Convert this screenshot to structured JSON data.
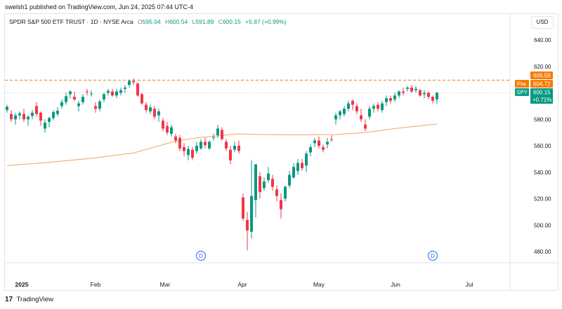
{
  "header": {
    "attribution": "swelsh1 published on TradingView.com, Jun 24, 2025 07:44 UTC-4"
  },
  "legend": {
    "symbol_text": "SPDR S&P 500 ETF TRUST · 1D · NYSE Arca",
    "open_label": "O",
    "open_value": "595.04",
    "high_label": "H",
    "high_value": "600.54",
    "low_label": "L",
    "low_value": "591.89",
    "close_label": "C",
    "close_value": "600.15",
    "change_value": "+5.87 (+0.99%)"
  },
  "currency": "USD",
  "footer": {
    "brand": "TradingView",
    "logo_text": "17"
  },
  "colors": {
    "up": "#089981",
    "down": "#f23645",
    "ma": "#f7a35c",
    "premarket": "#f57c00"
  },
  "chart_data": {
    "type": "candlestick",
    "symbol": "SPY",
    "timeframe": "1D",
    "ylim": [
      470,
      650
    ],
    "y_ticks": [
      480,
      500,
      520,
      540,
      560,
      580,
      600,
      620,
      640
    ],
    "x_labels": [
      "2025",
      "Feb",
      "Mar",
      "Apr",
      "May",
      "Jun",
      "Jul"
    ],
    "candles": [
      {
        "o": 587.0,
        "h": 591.0,
        "l": 585.0,
        "c": 589.5
      },
      {
        "o": 584.0,
        "h": 587.0,
        "l": 578.0,
        "c": 580.0
      },
      {
        "o": 580.0,
        "h": 585.0,
        "l": 576.0,
        "c": 583.0
      },
      {
        "o": 583.0,
        "h": 586.0,
        "l": 580.0,
        "c": 584.5
      },
      {
        "o": 584.0,
        "h": 588.0,
        "l": 578.0,
        "c": 580.0
      },
      {
        "o": 580.0,
        "h": 583.0,
        "l": 575.0,
        "c": 582.0
      },
      {
        "o": 582.5,
        "h": 587.0,
        "l": 580.0,
        "c": 585.0
      },
      {
        "o": 590.0,
        "h": 593.0,
        "l": 582.0,
        "c": 584.0
      },
      {
        "o": 585.0,
        "h": 586.0,
        "l": 575.0,
        "c": 579.0
      },
      {
        "o": 573.0,
        "h": 580.0,
        "l": 570.0,
        "c": 577.5
      },
      {
        "o": 578.0,
        "h": 582.0,
        "l": 574.0,
        "c": 581.0
      },
      {
        "o": 581.0,
        "h": 587.0,
        "l": 579.0,
        "c": 585.5
      },
      {
        "o": 584.0,
        "h": 589.0,
        "l": 582.0,
        "c": 586.5
      },
      {
        "o": 590.0,
        "h": 595.0,
        "l": 588.0,
        "c": 593.0
      },
      {
        "o": 593.0,
        "h": 600.0,
        "l": 591.0,
        "c": 597.5
      },
      {
        "o": 599.0,
        "h": 602.0,
        "l": 596.0,
        "c": 601.0
      },
      {
        "o": 597.0,
        "h": 601.0,
        "l": 594.0,
        "c": 595.0
      },
      {
        "o": 590.0,
        "h": 594.0,
        "l": 586.0,
        "c": 592.0
      },
      {
        "o": 593.0,
        "h": 599.0,
        "l": 591.0,
        "c": 597.0
      },
      {
        "o": 601.0,
        "h": 603.0,
        "l": 598.0,
        "c": 600.5
      },
      {
        "o": 599.0,
        "h": 602.0,
        "l": 597.0,
        "c": 599.5
      },
      {
        "o": 590.0,
        "h": 593.0,
        "l": 585.0,
        "c": 588.0
      },
      {
        "o": 588.0,
        "h": 595.0,
        "l": 586.0,
        "c": 593.5
      },
      {
        "o": 595.0,
        "h": 600.0,
        "l": 593.0,
        "c": 599.0
      },
      {
        "o": 600.0,
        "h": 603.0,
        "l": 598.0,
        "c": 601.5
      },
      {
        "o": 601.0,
        "h": 603.0,
        "l": 597.0,
        "c": 598.0
      },
      {
        "o": 598.0,
        "h": 603.0,
        "l": 596.0,
        "c": 601.0
      },
      {
        "o": 600.0,
        "h": 604.0,
        "l": 598.0,
        "c": 602.0
      },
      {
        "o": 603.0,
        "h": 606.0,
        "l": 600.0,
        "c": 604.0
      },
      {
        "o": 606.0,
        "h": 610.0,
        "l": 604.0,
        "c": 609.0
      },
      {
        "o": 609.0,
        "h": 611.0,
        "l": 606.0,
        "c": 608.0
      },
      {
        "o": 607.0,
        "h": 608.0,
        "l": 597.0,
        "c": 598.0
      },
      {
        "o": 599.0,
        "h": 600.0,
        "l": 591.0,
        "c": 592.0
      },
      {
        "o": 591.0,
        "h": 593.0,
        "l": 585.0,
        "c": 587.0
      },
      {
        "o": 586.0,
        "h": 591.0,
        "l": 584.0,
        "c": 589.0
      },
      {
        "o": 588.0,
        "h": 590.0,
        "l": 580.0,
        "c": 582.0
      },
      {
        "o": 583.0,
        "h": 588.0,
        "l": 578.0,
        "c": 586.0
      },
      {
        "o": 579.0,
        "h": 581.0,
        "l": 571.0,
        "c": 573.0
      },
      {
        "o": 575.0,
        "h": 578.0,
        "l": 568.0,
        "c": 570.0
      },
      {
        "o": 569.0,
        "h": 576.0,
        "l": 567.0,
        "c": 574.0
      },
      {
        "o": 567.0,
        "h": 569.0,
        "l": 562.0,
        "c": 564.0
      },
      {
        "o": 566.0,
        "h": 568.0,
        "l": 556.0,
        "c": 558.0
      },
      {
        "o": 559.0,
        "h": 562.0,
        "l": 552.0,
        "c": 556.0
      },
      {
        "o": 553.0,
        "h": 560.0,
        "l": 549.0,
        "c": 557.5
      },
      {
        "o": 557.0,
        "h": 559.0,
        "l": 549.0,
        "c": 551.0
      },
      {
        "o": 556.0,
        "h": 563.0,
        "l": 554.0,
        "c": 560.0
      },
      {
        "o": 558.0,
        "h": 565.0,
        "l": 557.0,
        "c": 563.0
      },
      {
        "o": 563.0,
        "h": 566.0,
        "l": 558.0,
        "c": 560.5
      },
      {
        "o": 558.0,
        "h": 564.0,
        "l": 557.0,
        "c": 563.0
      },
      {
        "o": 566.0,
        "h": 569.0,
        "l": 564.0,
        "c": 566.5
      },
      {
        "o": 568.0,
        "h": 576.0,
        "l": 566.0,
        "c": 573.0
      },
      {
        "o": 572.0,
        "h": 574.0,
        "l": 564.0,
        "c": 565.0
      },
      {
        "o": 563.0,
        "h": 565.0,
        "l": 556.0,
        "c": 558.0
      },
      {
        "o": 557.0,
        "h": 560.0,
        "l": 546.0,
        "c": 549.0
      },
      {
        "o": 557.0,
        "h": 563.0,
        "l": 555.0,
        "c": 560.0
      },
      {
        "o": 560.0,
        "h": 564.0,
        "l": 554.0,
        "c": 556.0
      },
      {
        "o": 521.0,
        "h": 524.0,
        "l": 503.0,
        "c": 505.0
      },
      {
        "o": 504.0,
        "h": 510.0,
        "l": 481.0,
        "c": 496.0
      },
      {
        "o": 495.0,
        "h": 549.0,
        "l": 490.0,
        "c": 522.0
      },
      {
        "o": 519.0,
        "h": 546.0,
        "l": 506.0,
        "c": 546.0
      },
      {
        "o": 537.0,
        "h": 540.0,
        "l": 520.0,
        "c": 525.0
      },
      {
        "o": 528.0,
        "h": 536.0,
        "l": 526.0,
        "c": 533.0
      },
      {
        "o": 534.0,
        "h": 544.0,
        "l": 532.0,
        "c": 539.0
      },
      {
        "o": 535.0,
        "h": 538.0,
        "l": 526.0,
        "c": 529.0
      },
      {
        "o": 527.0,
        "h": 530.0,
        "l": 518.0,
        "c": 522.0
      },
      {
        "o": 519.0,
        "h": 524.0,
        "l": 505.0,
        "c": 512.0
      },
      {
        "o": 520.0,
        "h": 530.0,
        "l": 518.0,
        "c": 529.0
      },
      {
        "o": 530.0,
        "h": 541.0,
        "l": 528.0,
        "c": 538.0
      },
      {
        "o": 536.0,
        "h": 547.0,
        "l": 535.0,
        "c": 544.0
      },
      {
        "o": 541.0,
        "h": 550.0,
        "l": 538.0,
        "c": 547.0
      },
      {
        "o": 547.0,
        "h": 550.0,
        "l": 541.0,
        "c": 543.0
      },
      {
        "o": 545.0,
        "h": 556.0,
        "l": 540.0,
        "c": 554.0
      },
      {
        "o": 555.0,
        "h": 561.0,
        "l": 552.0,
        "c": 559.0
      },
      {
        "o": 562.0,
        "h": 566.0,
        "l": 559.0,
        "c": 564.0
      },
      {
        "o": 564.0,
        "h": 567.0,
        "l": 558.0,
        "c": 560.0
      },
      {
        "o": 559.0,
        "h": 561.0,
        "l": 555.0,
        "c": 557.0
      },
      {
        "o": 561.0,
        "h": 566.0,
        "l": 558.0,
        "c": 563.0
      },
      {
        "o": 565.0,
        "h": 568.0,
        "l": 563.0,
        "c": 564.5
      },
      {
        "o": 580.0,
        "h": 585.0,
        "l": 576.0,
        "c": 583.0
      },
      {
        "o": 583.0,
        "h": 587.0,
        "l": 580.0,
        "c": 586.0
      },
      {
        "o": 584.0,
        "h": 590.0,
        "l": 582.0,
        "c": 588.0
      },
      {
        "o": 588.0,
        "h": 594.0,
        "l": 586.0,
        "c": 592.0
      },
      {
        "o": 594.0,
        "h": 595.0,
        "l": 587.0,
        "c": 591.0
      },
      {
        "o": 590.0,
        "h": 592.0,
        "l": 584.0,
        "c": 586.0
      },
      {
        "o": 583.0,
        "h": 588.0,
        "l": 578.0,
        "c": 580.0
      },
      {
        "o": 576.0,
        "h": 580.0,
        "l": 571.0,
        "c": 573.0
      },
      {
        "o": 582.0,
        "h": 590.0,
        "l": 580.0,
        "c": 588.0
      },
      {
        "o": 588.0,
        "h": 592.0,
        "l": 585.0,
        "c": 590.0
      },
      {
        "o": 591.0,
        "h": 593.0,
        "l": 586.0,
        "c": 588.0
      },
      {
        "o": 587.0,
        "h": 594.0,
        "l": 585.0,
        "c": 592.0
      },
      {
        "o": 593.0,
        "h": 598.0,
        "l": 590.0,
        "c": 596.0
      },
      {
        "o": 596.0,
        "h": 598.0,
        "l": 592.0,
        "c": 594.0
      },
      {
        "o": 595.0,
        "h": 600.0,
        "l": 593.0,
        "c": 598.0
      },
      {
        "o": 598.0,
        "h": 602.0,
        "l": 596.0,
        "c": 601.0
      },
      {
        "o": 601.0,
        "h": 604.0,
        "l": 598.0,
        "c": 600.0
      },
      {
        "o": 603.0,
        "h": 605.0,
        "l": 601.0,
        "c": 604.0
      },
      {
        "o": 604.0,
        "h": 606.0,
        "l": 600.0,
        "c": 601.0
      },
      {
        "o": 602.0,
        "h": 605.0,
        "l": 600.0,
        "c": 603.0
      },
      {
        "o": 602.0,
        "h": 603.0,
        "l": 597.0,
        "c": 598.0
      },
      {
        "o": 599.0,
        "h": 602.0,
        "l": 596.0,
        "c": 600.0
      },
      {
        "o": 600.0,
        "h": 601.0,
        "l": 595.0,
        "c": 597.0
      },
      {
        "o": 597.0,
        "h": 598.0,
        "l": 592.0,
        "c": 594.0
      },
      {
        "o": 595.04,
        "h": 600.54,
        "l": 591.89,
        "c": 600.15
      }
    ],
    "moving_average": [
      {
        "i": 0,
        "v": 545.0
      },
      {
        "i": 10,
        "v": 547.5
      },
      {
        "i": 20,
        "v": 550.5
      },
      {
        "i": 30,
        "v": 554.5
      },
      {
        "i": 40,
        "v": 563.5
      },
      {
        "i": 45,
        "v": 566.0
      },
      {
        "i": 50,
        "v": 567.5
      },
      {
        "i": 55,
        "v": 569.0
      },
      {
        "i": 60,
        "v": 568.5
      },
      {
        "i": 70,
        "v": 568.3
      },
      {
        "i": 78,
        "v": 568.5
      },
      {
        "i": 85,
        "v": 570.0
      },
      {
        "i": 92,
        "v": 573.0
      },
      {
        "i": 102,
        "v": 576.5
      }
    ],
    "price_lines": [
      {
        "label": "",
        "value": 609.59,
        "value_text": "609.59",
        "style": "dashed",
        "color": "#f57c00"
      },
      {
        "label": "Pre",
        "value": 604.72,
        "value_text": "604.72",
        "style": "none",
        "color": "#f57c00"
      },
      {
        "label": "SPY",
        "value": 600.15,
        "value_text": "600.15",
        "sub_text": "+0.71%",
        "style": "dotted",
        "color": "#089981"
      }
    ],
    "events": [
      {
        "i": 46,
        "label": "D"
      },
      {
        "i": 101,
        "label": "D"
      }
    ],
    "grid": false
  }
}
